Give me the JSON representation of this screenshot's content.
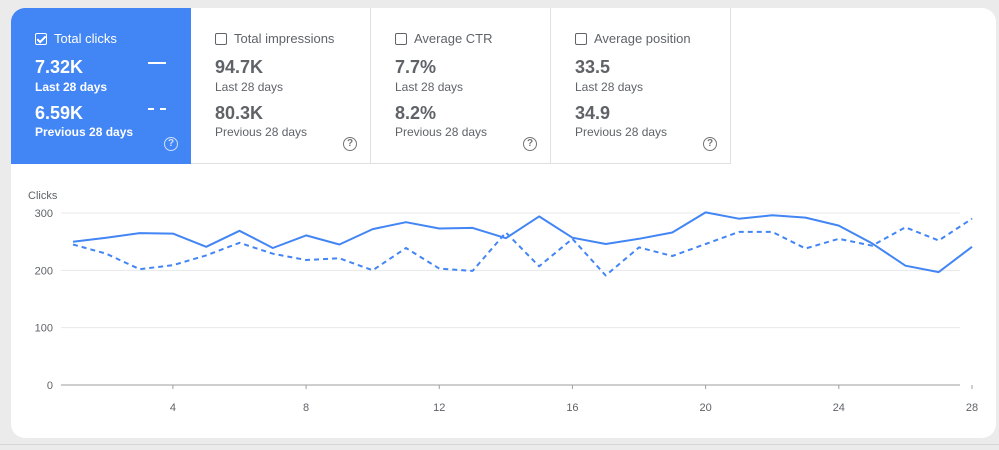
{
  "metrics": [
    {
      "label": "Total clicks",
      "value_current": "7.32K",
      "period_current": "Last 28 days",
      "value_previous": "6.59K",
      "period_previous": "Previous 28 days",
      "selected": true
    },
    {
      "label": "Total impressions",
      "value_current": "94.7K",
      "period_current": "Last 28 days",
      "value_previous": "80.3K",
      "period_previous": "Previous 28 days",
      "selected": false
    },
    {
      "label": "Average CTR",
      "value_current": "7.7%",
      "period_current": "Last 28 days",
      "value_previous": "8.2%",
      "period_previous": "Previous 28 days",
      "selected": false
    },
    {
      "label": "Average position",
      "value_current": "33.5",
      "period_current": "Last 28 days",
      "value_previous": "34.9",
      "period_previous": "Previous 28 days",
      "selected": false
    }
  ],
  "help_glyph": "?",
  "colors": {
    "accent": "#4285f4",
    "text": "#5f6368"
  },
  "chart_data": {
    "type": "line",
    "ylabel": "Clicks",
    "ylim": [
      0,
      300
    ],
    "yticks": [
      0,
      100,
      200,
      300
    ],
    "xlim": [
      1,
      28
    ],
    "xticks": [
      4,
      8,
      12,
      16,
      20,
      24,
      28
    ],
    "x": [
      1,
      2,
      3,
      4,
      5,
      6,
      7,
      8,
      9,
      10,
      11,
      12,
      13,
      14,
      15,
      16,
      17,
      18,
      19,
      20,
      21,
      22,
      23,
      24,
      25,
      26,
      27,
      28
    ],
    "grid": true,
    "series": [
      {
        "style": "solid",
        "values": [
          250,
          257,
          265,
          264,
          241,
          269,
          239,
          261,
          245,
          272,
          284,
          273,
          274,
          256,
          294,
          257,
          246,
          255,
          266,
          301,
          290,
          296,
          292,
          278,
          247,
          208,
          197,
          241
        ]
      },
      {
        "style": "dashed",
        "values": [
          245,
          229,
          202,
          209,
          226,
          248,
          229,
          218,
          221,
          200,
          239,
          203,
          199,
          266,
          207,
          255,
          191,
          240,
          225,
          246,
          267,
          267,
          238,
          255,
          243,
          275,
          252,
          290
        ]
      }
    ]
  }
}
